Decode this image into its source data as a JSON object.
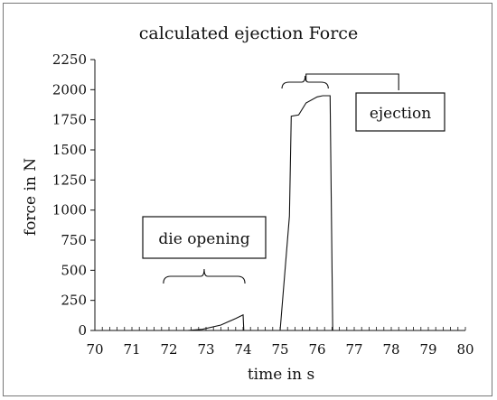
{
  "chart_data": {
    "type": "line",
    "title": "calculated ejection Force",
    "xlabel": "time in s",
    "ylabel": "force in N",
    "xlim": [
      70,
      80
    ],
    "ylim": [
      0,
      2250
    ],
    "xticks": [
      70,
      71,
      72,
      73,
      74,
      75,
      76,
      77,
      78,
      79,
      80
    ],
    "yticks": [
      0,
      250,
      500,
      750,
      1000,
      1250,
      1500,
      1750,
      2000,
      2250
    ],
    "grid": false,
    "series": [
      {
        "name": "",
        "x": [
          70.0,
          72.5,
          72.9,
          73.4,
          73.8,
          74.0,
          74.02,
          74.9,
          75.0,
          75.25,
          75.3,
          75.5,
          75.7,
          76.0,
          76.15,
          76.35,
          76.42
        ],
        "y": [
          0,
          0,
          10,
          45,
          100,
          130,
          0,
          0,
          0,
          950,
          1780,
          1790,
          1890,
          1940,
          1950,
          1950,
          0
        ]
      }
    ],
    "annotations": [
      {
        "text": "die opening",
        "bracket_x": [
          71.85,
          74.05
        ],
        "bracket_y": 390
      },
      {
        "text": "ejection",
        "bracket_x": [
          75.05,
          76.3
        ],
        "bracket_y": 2010,
        "connector_x": [
          75.7,
          78.2
        ],
        "connector_y": 2130
      }
    ]
  }
}
